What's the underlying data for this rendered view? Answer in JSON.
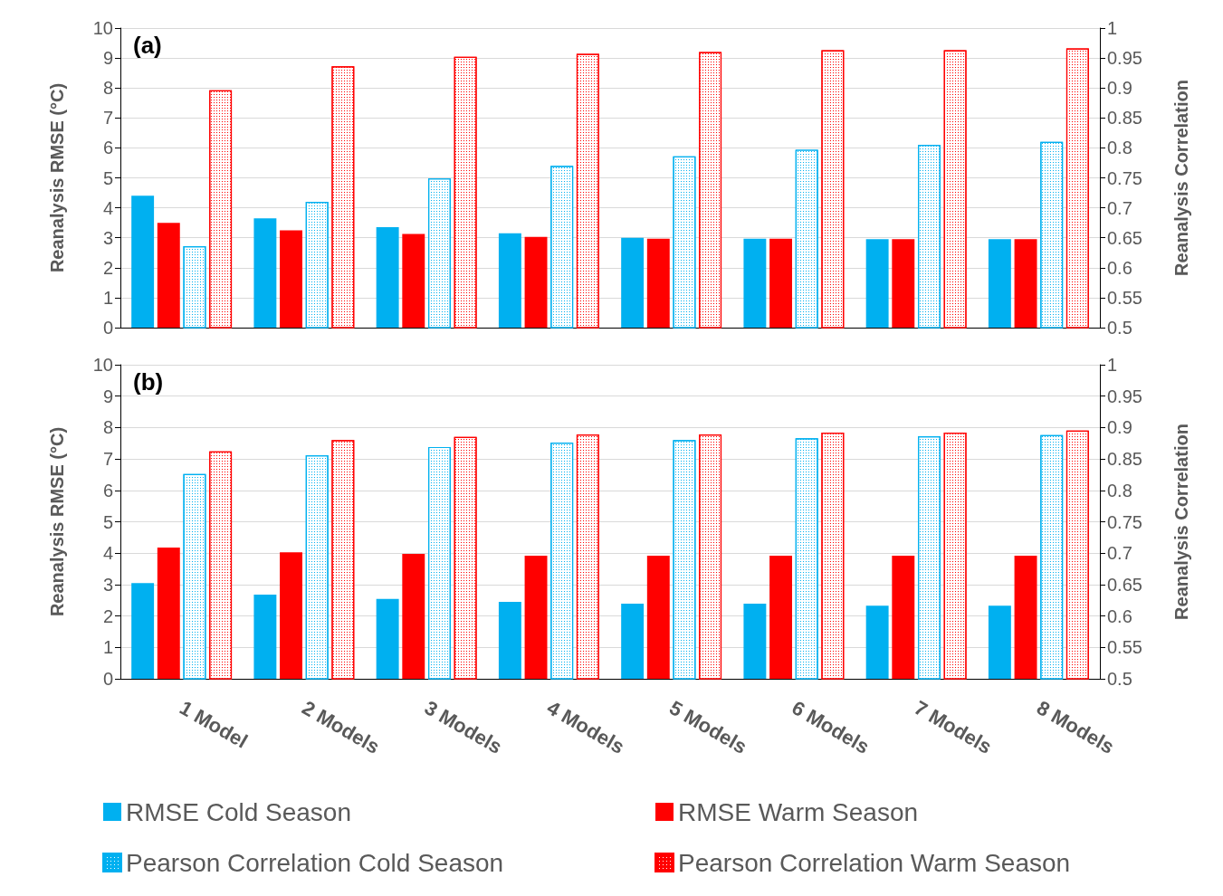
{
  "chart_data": [
    {
      "type": "bar",
      "annotations": [
        "(a)"
      ],
      "ylabel": "Reanalysis RMSE (°C)",
      "y2label": "Reanalysis Correlation",
      "categories": [
        null,
        null,
        null,
        null,
        null,
        null,
        null,
        null
      ],
      "ylim": [
        0,
        10
      ],
      "yticks": [
        0,
        1,
        2,
        3,
        4,
        5,
        6,
        7,
        8,
        9,
        10
      ],
      "y2lim": [
        0.5,
        1
      ],
      "y2ticks": [
        0.5,
        0.55,
        0.6,
        0.65,
        0.7,
        0.75,
        0.8,
        0.85,
        0.9,
        0.95,
        1
      ],
      "grid": "y",
      "tick_labels": "y",
      "legend": false,
      "series": [
        {
          "color": "#00b0f0",
          "values": [
            4.4,
            3.65,
            3.35,
            3.15,
            3.0,
            2.97,
            2.95,
            2.95
          ]
        },
        {
          "color": "#ff0000",
          "values": [
            3.5,
            3.25,
            3.13,
            3.03,
            2.97,
            2.97,
            2.95,
            2.95
          ]
        },
        {
          "color": "#00b0f0",
          "axis": "y2",
          "values": [
            0.636,
            0.71,
            0.749,
            0.77,
            0.786,
            0.797,
            0.805,
            0.81
          ]
        },
        {
          "color": "#ff0000",
          "axis": "y2",
          "values": [
            0.896,
            0.936,
            0.952,
            0.957,
            0.96,
            0.963,
            0.963,
            0.966
          ]
        }
      ]
    },
    {
      "type": "bar",
      "annotations": [
        "(b)"
      ],
      "ylabel": "Reanalysis RMSE (°C)",
      "y2label": "Reanalysis Correlation",
      "categories": [
        "1 Model",
        "2 Models",
        "3 Models",
        "4 Models",
        "5 Models",
        "6 Models",
        "7 Models",
        "8 Models"
      ],
      "ylim": [
        0,
        10
      ],
      "yticks": [
        0,
        1,
        2,
        3,
        4,
        5,
        6,
        7,
        8,
        9,
        10
      ],
      "y2lim": [
        0.5,
        1
      ],
      "y2ticks": [
        0.5,
        0.55,
        0.6,
        0.65,
        0.7,
        0.75,
        0.8,
        0.85,
        0.9,
        0.95,
        1
      ],
      "grid": "y",
      "legend": "bottom",
      "series": [
        {
          "name": "RMSE Cold Season",
          "color": "#00b0f0",
          "values": [
            3.05,
            2.68,
            2.54,
            2.45,
            2.39,
            2.39,
            2.33,
            2.33
          ]
        },
        {
          "name": "RMSE Warm Season",
          "color": "#ff0000",
          "values": [
            4.18,
            4.03,
            3.98,
            3.92,
            3.92,
            3.92,
            3.92,
            3.92
          ]
        },
        {
          "name": "Pearson Correlation Cold Season",
          "color": "#00b0f0",
          "axis": "y2",
          "values": [
            0.826,
            0.856,
            0.869,
            0.876,
            0.88,
            0.883,
            0.886,
            0.888
          ]
        },
        {
          "name": "Pearson Correlation Warm Season",
          "color": "#ff0000",
          "axis": "y2",
          "values": [
            0.862,
            0.88,
            0.885,
            0.889,
            0.889,
            0.892,
            0.892,
            0.895
          ]
        }
      ]
    }
  ]
}
